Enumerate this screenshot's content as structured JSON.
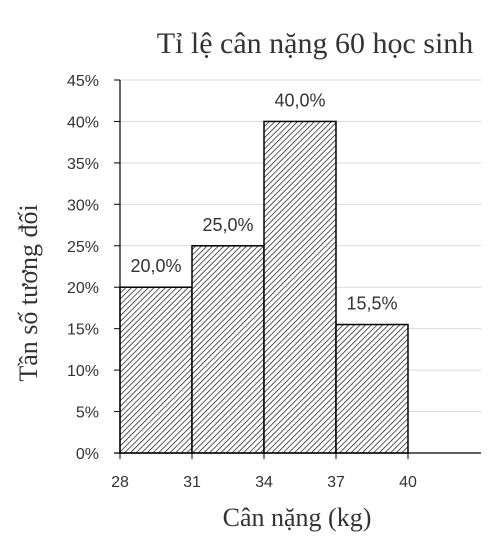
{
  "chart_data": {
    "type": "bar",
    "title": "Tỉ lệ cân nặng 60 học sinh",
    "xlabel": "Cân nặng (kg)",
    "ylabel": "Tần số tương đối",
    "x_ticks": [
      "28",
      "31",
      "34",
      "37",
      "40"
    ],
    "y_ticks": [
      "0%",
      "5%",
      "10%",
      "15%",
      "20%",
      "25%",
      "30%",
      "35%",
      "40%",
      "45%"
    ],
    "ylim": [
      0,
      45
    ],
    "xlim": [
      28,
      43
    ],
    "grid": true,
    "bins": [
      {
        "from": 28,
        "to": 31,
        "value": 20.0,
        "label": "20,0%"
      },
      {
        "from": 31,
        "to": 34,
        "value": 25.0,
        "label": "25,0%"
      },
      {
        "from": 34,
        "to": 37,
        "value": 40.0,
        "label": "40,0%"
      },
      {
        "from": 37,
        "to": 40,
        "value": 15.5,
        "label": "15,5%"
      }
    ],
    "bar_fill": "hatched",
    "colors": {
      "bar_stroke": "#000000",
      "hatch": "#000000",
      "grid": "#d9d9d9",
      "axis": "#000000",
      "text": "#333333"
    }
  }
}
